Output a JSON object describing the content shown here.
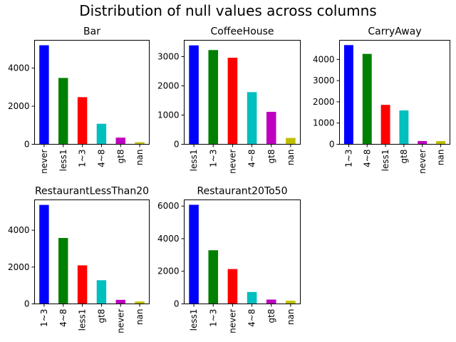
{
  "figure": {
    "title": "Distribution of null values across columns"
  },
  "chart_data": [
    {
      "type": "bar",
      "title": "Bar",
      "categories": [
        "never",
        "less1",
        "1~3",
        "4~8",
        "gt8",
        "nan"
      ],
      "values": [
        5197,
        3482,
        2473,
        1076,
        349,
        107
      ],
      "colors": [
        "#0000ff",
        "#008000",
        "#ff0000",
        "#00bfbf",
        "#bf00bf",
        "#bfbf00"
      ],
      "ylim": [
        0,
        5460
      ],
      "yticks": [
        0,
        2000,
        4000
      ],
      "grid": false
    },
    {
      "type": "bar",
      "title": "CoffeeHouse",
      "categories": [
        "less1",
        "1~3",
        "never",
        "4~8",
        "gt8",
        "nan"
      ],
      "values": [
        3385,
        3225,
        2962,
        1784,
        1111,
        217
      ],
      "colors": [
        "#0000ff",
        "#008000",
        "#ff0000",
        "#00bfbf",
        "#bf00bf",
        "#bfbf00"
      ],
      "ylim": [
        0,
        3560
      ],
      "yticks": [
        0,
        1000,
        2000,
        3000
      ],
      "grid": false
    },
    {
      "type": "bar",
      "title": "CarryAway",
      "categories": [
        "1~3",
        "4~8",
        "less1",
        "gt8",
        "never",
        "nan"
      ],
      "values": [
        4672,
        4258,
        1856,
        1594,
        153,
        151
      ],
      "colors": [
        "#0000ff",
        "#008000",
        "#ff0000",
        "#00bfbf",
        "#bf00bf",
        "#bfbf00"
      ],
      "ylim": [
        0,
        4900
      ],
      "yticks": [
        0,
        1000,
        2000,
        3000,
        4000
      ],
      "grid": false
    },
    {
      "type": "bar",
      "title": "RestaurantLessThan20",
      "categories": [
        "1~3",
        "4~8",
        "less1",
        "gt8",
        "never",
        "nan"
      ],
      "values": [
        5376,
        3580,
        2093,
        1285,
        220,
        130
      ],
      "colors": [
        "#0000ff",
        "#008000",
        "#ff0000",
        "#00bfbf",
        "#bf00bf",
        "#bfbf00"
      ],
      "ylim": [
        0,
        5650
      ],
      "yticks": [
        0,
        2000,
        4000
      ],
      "grid": false
    },
    {
      "type": "bar",
      "title": "Restaurant20To50",
      "categories": [
        "less1",
        "1~3",
        "never",
        "4~8",
        "gt8",
        "nan"
      ],
      "values": [
        6077,
        3290,
        2136,
        728,
        264,
        189
      ],
      "colors": [
        "#0000ff",
        "#008000",
        "#ff0000",
        "#00bfbf",
        "#bf00bf",
        "#bfbf00"
      ],
      "ylim": [
        0,
        6380
      ],
      "yticks": [
        0,
        2000,
        4000,
        6000
      ],
      "grid": false
    }
  ]
}
